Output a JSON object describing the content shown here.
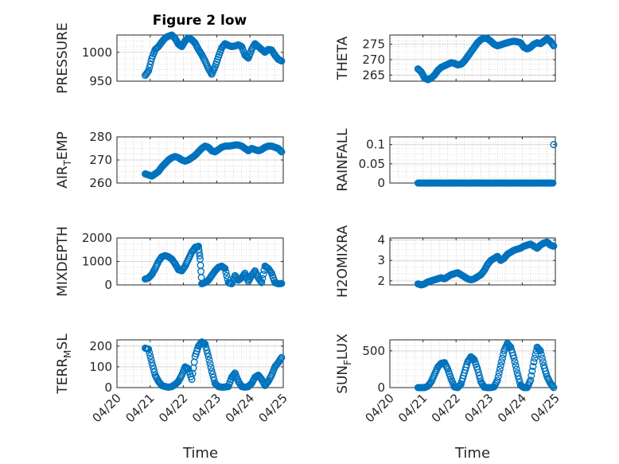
{
  "figure": {
    "title": "Figure 2 low",
    "xlabel": "Time",
    "x_ticks": [
      "04/20",
      "04/21",
      "04/22",
      "04/23",
      "04/24",
      "04/25"
    ],
    "marker_color": "#0072BD",
    "axes_color": "#262626",
    "grid_color": "#bdbdbd"
  },
  "chart_data": [
    {
      "type": "scatter",
      "id": "pressure",
      "ylabel": "PRESSURE",
      "xlim": [
        0,
        5
      ],
      "ylim": [
        950,
        1030
      ],
      "yticks": [
        950,
        1000
      ],
      "ytick_labels": [
        "950",
        "1000"
      ],
      "x": [
        0.85,
        0.95,
        1.05,
        1.15,
        1.25,
        1.35,
        1.45,
        1.55,
        1.65,
        1.75,
        1.85,
        1.95,
        2.05,
        2.15,
        2.25,
        2.35,
        2.45,
        2.55,
        2.65,
        2.75,
        2.85,
        2.95,
        3.05,
        3.15,
        3.25,
        3.35,
        3.45,
        3.55,
        3.65,
        3.75,
        3.85,
        3.95,
        4.05,
        4.15,
        4.25,
        4.35,
        4.45,
        4.55,
        4.65,
        4.75,
        4.85,
        4.95
      ],
      "y": [
        960,
        968,
        990,
        1005,
        1010,
        1018,
        1025,
        1028,
        1030,
        1024,
        1014,
        1010,
        1020,
        1025,
        1022,
        1016,
        1005,
        996,
        985,
        972,
        962,
        975,
        992,
        1008,
        1015,
        1012,
        1010,
        1011,
        1013,
        1010,
        995,
        990,
        1005,
        1015,
        1010,
        1005,
        1000,
        1005,
        1004,
        995,
        988,
        985
      ]
    },
    {
      "type": "scatter",
      "id": "theta",
      "ylabel": "THETA",
      "xlim": [
        0,
        5
      ],
      "ylim": [
        263,
        278
      ],
      "yticks": [
        265,
        270,
        275
      ],
      "ytick_labels": [
        "265",
        "270",
        "275"
      ],
      "x": [
        0.85,
        0.95,
        1.05,
        1.15,
        1.25,
        1.35,
        1.45,
        1.55,
        1.65,
        1.75,
        1.85,
        1.95,
        2.05,
        2.15,
        2.25,
        2.35,
        2.45,
        2.55,
        2.65,
        2.75,
        2.85,
        2.95,
        3.05,
        3.15,
        3.25,
        3.35,
        3.45,
        3.55,
        3.65,
        3.75,
        3.85,
        3.95,
        4.05,
        4.15,
        4.25,
        4.35,
        4.45,
        4.55,
        4.65,
        4.75,
        4.85,
        4.95
      ],
      "y": [
        267,
        266,
        264,
        263.5,
        264,
        265,
        266.5,
        267.5,
        268,
        268.5,
        269,
        268.8,
        268.3,
        268.5,
        269.5,
        271,
        272.5,
        274,
        275.5,
        276.5,
        277,
        276.8,
        276,
        275,
        274.5,
        274.8,
        275.2,
        275.5,
        275.8,
        276,
        275.8,
        275.5,
        274,
        273.5,
        274,
        275,
        275.5,
        275.2,
        276,
        276.8,
        276,
        274.5
      ]
    },
    {
      "type": "scatter",
      "id": "air-temp",
      "ylabel": "AIR_TEMP",
      "xlim": [
        0,
        5
      ],
      "ylim": [
        260,
        280
      ],
      "yticks": [
        260,
        270,
        280
      ],
      "ytick_labels": [
        "260",
        "270",
        "280"
      ],
      "x": [
        0.85,
        0.95,
        1.05,
        1.15,
        1.25,
        1.35,
        1.45,
        1.55,
        1.65,
        1.75,
        1.85,
        1.95,
        2.05,
        2.15,
        2.25,
        2.35,
        2.45,
        2.55,
        2.65,
        2.75,
        2.85,
        2.95,
        3.05,
        3.15,
        3.25,
        3.35,
        3.45,
        3.55,
        3.65,
        3.75,
        3.85,
        3.95,
        4.05,
        4.15,
        4.25,
        4.35,
        4.45,
        4.55,
        4.65,
        4.75,
        4.85,
        4.95
      ],
      "y": [
        264,
        263.5,
        263,
        264,
        265,
        267,
        268.5,
        270,
        271,
        271.5,
        271,
        270,
        269.5,
        270,
        271,
        272,
        273.5,
        275,
        276,
        275.5,
        274,
        273.5,
        274.5,
        275.5,
        276,
        276,
        276.2,
        276.5,
        276.5,
        276,
        275,
        274,
        275,
        274.5,
        274,
        274.5,
        275.5,
        276,
        276,
        275.5,
        275,
        273.5
      ]
    },
    {
      "type": "scatter",
      "id": "rainfall",
      "ylabel": "RAINFALL",
      "xlim": [
        0,
        5
      ],
      "ylim": [
        0,
        0.12
      ],
      "yticks": [
        0,
        0.05,
        0.1
      ],
      "ytick_labels": [
        "0",
        "0.05",
        "0.1"
      ],
      "x": [
        0.85,
        0.95,
        1.05,
        1.15,
        1.25,
        1.35,
        1.45,
        1.55,
        1.65,
        1.75,
        1.85,
        1.95,
        2.05,
        2.15,
        2.25,
        2.35,
        2.45,
        2.55,
        2.65,
        2.75,
        2.85,
        2.95,
        3.05,
        3.15,
        3.25,
        3.35,
        3.45,
        3.55,
        3.65,
        3.75,
        3.85,
        3.95,
        4.05,
        4.15,
        4.25,
        4.35,
        4.45,
        4.55,
        4.65,
        4.75,
        4.85,
        4.95
      ],
      "y": [
        0,
        0,
        0,
        0,
        0,
        0,
        0,
        0,
        0,
        0,
        0,
        0,
        0,
        0,
        0,
        0,
        0,
        0,
        0,
        0,
        0,
        0,
        0,
        0,
        0,
        0,
        0,
        0,
        0,
        0,
        0,
        0,
        0,
        0,
        0,
        0,
        0,
        0,
        0,
        0,
        0,
        0.1
      ]
    },
    {
      "type": "scatter",
      "id": "mixdepth",
      "ylabel": "MIXDEPTH",
      "xlim": [
        0,
        5
      ],
      "ylim": [
        0,
        2000
      ],
      "yticks": [
        0,
        1000,
        2000
      ],
      "ytick_labels": [
        "0",
        "1000",
        "2000"
      ],
      "x": [
        0.85,
        0.95,
        1.05,
        1.15,
        1.25,
        1.35,
        1.45,
        1.55,
        1.65,
        1.75,
        1.85,
        1.95,
        2.05,
        2.15,
        2.25,
        2.35,
        2.45,
        2.5,
        2.55,
        2.65,
        2.75,
        2.85,
        2.95,
        3.05,
        3.15,
        3.25,
        3.35,
        3.45,
        3.55,
        3.65,
        3.75,
        3.85,
        3.95,
        4.05,
        4.15,
        4.25,
        4.35,
        4.45,
        4.55,
        4.65,
        4.75,
        4.85,
        4.95
      ],
      "y": [
        250,
        300,
        450,
        700,
        1000,
        1200,
        1250,
        1200,
        1100,
        900,
        650,
        600,
        800,
        1100,
        1400,
        1600,
        1650,
        1100,
        50,
        100,
        200,
        400,
        600,
        750,
        800,
        700,
        100,
        50,
        400,
        200,
        300,
        500,
        150,
        400,
        600,
        300,
        100,
        800,
        700,
        500,
        100,
        50,
        60
      ]
    },
    {
      "type": "scatter",
      "id": "h2omixra",
      "ylabel": "H2OMIXRA",
      "xlim": [
        0,
        5
      ],
      "ylim": [
        1.8,
        4.1
      ],
      "yticks": [
        2,
        3,
        4
      ],
      "ytick_labels": [
        "2",
        "3",
        "4"
      ],
      "x": [
        0.85,
        0.95,
        1.05,
        1.15,
        1.25,
        1.35,
        1.45,
        1.55,
        1.65,
        1.75,
        1.85,
        1.95,
        2.05,
        2.15,
        2.25,
        2.35,
        2.45,
        2.55,
        2.65,
        2.75,
        2.85,
        2.95,
        3.05,
        3.15,
        3.25,
        3.35,
        3.45,
        3.55,
        3.65,
        3.75,
        3.85,
        3.95,
        4.05,
        4.15,
        4.25,
        4.35,
        4.45,
        4.55,
        4.65,
        4.75,
        4.85,
        4.95
      ],
      "y": [
        1.85,
        1.8,
        1.85,
        1.95,
        2.0,
        2.05,
        2.1,
        2.15,
        2.1,
        2.2,
        2.3,
        2.35,
        2.4,
        2.3,
        2.2,
        2.1,
        2.05,
        2.1,
        2.2,
        2.3,
        2.5,
        2.8,
        3.0,
        3.1,
        3.2,
        3.0,
        3.1,
        3.3,
        3.4,
        3.5,
        3.55,
        3.6,
        3.7,
        3.75,
        3.8,
        3.7,
        3.6,
        3.75,
        3.85,
        3.9,
        3.75,
        3.7
      ]
    },
    {
      "type": "scatter",
      "id": "terr-msl",
      "ylabel": "TERR_MSL",
      "xlim": [
        0,
        5
      ],
      "ylim": [
        0,
        230
      ],
      "yticks": [
        0,
        100,
        200
      ],
      "ytick_labels": [
        "0",
        "100",
        "200"
      ],
      "x": [
        0.85,
        0.95,
        1.05,
        1.15,
        1.25,
        1.35,
        1.45,
        1.55,
        1.65,
        1.75,
        1.85,
        1.95,
        2.05,
        2.15,
        2.25,
        2.35,
        2.45,
        2.55,
        2.65,
        2.75,
        2.85,
        2.95,
        3.05,
        3.15,
        3.25,
        3.35,
        3.45,
        3.55,
        3.65,
        3.75,
        3.85,
        3.95,
        4.05,
        4.15,
        4.25,
        4.35,
        4.45,
        4.55,
        4.65,
        4.75,
        4.85,
        4.95
      ],
      "y": [
        190,
        185,
        120,
        60,
        30,
        10,
        5,
        2,
        5,
        15,
        30,
        60,
        100,
        90,
        40,
        150,
        200,
        220,
        210,
        150,
        80,
        20,
        5,
        2,
        3,
        5,
        50,
        70,
        30,
        5,
        2,
        5,
        20,
        50,
        60,
        40,
        10,
        30,
        60,
        100,
        120,
        145
      ]
    },
    {
      "type": "scatter",
      "id": "sun-flux",
      "ylabel": "SUN_FLUX",
      "xlim": [
        0,
        5
      ],
      "ylim": [
        0,
        650
      ],
      "yticks": [
        0,
        500
      ],
      "ytick_labels": [
        "0",
        "500"
      ],
      "x": [
        0.85,
        0.95,
        1.05,
        1.15,
        1.25,
        1.35,
        1.45,
        1.55,
        1.65,
        1.75,
        1.85,
        1.95,
        2.05,
        2.15,
        2.25,
        2.35,
        2.45,
        2.55,
        2.65,
        2.75,
        2.85,
        2.95,
        3.05,
        3.15,
        3.25,
        3.35,
        3.45,
        3.55,
        3.65,
        3.75,
        3.85,
        3.95,
        4.05,
        4.15,
        4.25,
        4.35,
        4.45,
        4.55,
        4.65,
        4.75,
        4.85,
        4.95
      ],
      "y": [
        0,
        0,
        0,
        20,
        80,
        180,
        280,
        330,
        340,
        250,
        120,
        10,
        0,
        50,
        200,
        350,
        420,
        380,
        250,
        80,
        5,
        0,
        0,
        10,
        100,
        300,
        500,
        600,
        550,
        400,
        200,
        30,
        0,
        0,
        100,
        350,
        550,
        500,
        300,
        150,
        60,
        0
      ]
    }
  ]
}
